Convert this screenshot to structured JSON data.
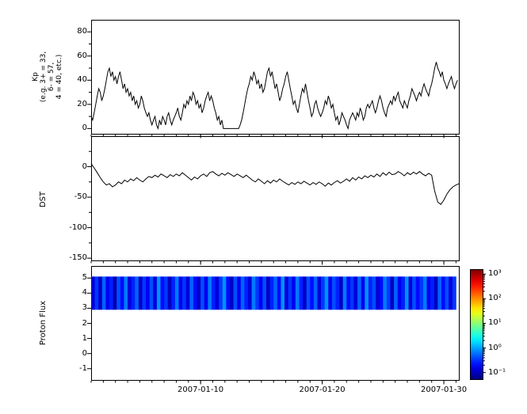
{
  "figure": {
    "bg": "#ffffff",
    "line_color": "#000000"
  },
  "chart_data": [
    {
      "type": "line",
      "panel": "kp",
      "ylabel_lines": [
        "Kp",
        "(e.g. 3+ = 33,",
        "6- = 57,",
        "4 = 40, etc.)"
      ],
      "ylim": [
        -5,
        90
      ],
      "yticks": [
        0,
        20,
        40,
        60,
        80
      ],
      "yticks_minor": [
        10,
        30,
        50,
        70
      ],
      "sample_hours": 3,
      "values": [
        10,
        7,
        13,
        20,
        27,
        33,
        30,
        23,
        27,
        33,
        40,
        47,
        50,
        43,
        47,
        40,
        43,
        37,
        43,
        47,
        40,
        33,
        37,
        30,
        33,
        27,
        30,
        23,
        27,
        20,
        23,
        17,
        20,
        27,
        23,
        17,
        13,
        10,
        13,
        7,
        3,
        7,
        10,
        3,
        0,
        7,
        3,
        10,
        7,
        3,
        10,
        13,
        7,
        3,
        7,
        10,
        13,
        17,
        10,
        7,
        13,
        20,
        17,
        23,
        20,
        27,
        23,
        30,
        27,
        20,
        23,
        17,
        20,
        13,
        17,
        23,
        27,
        30,
        23,
        27,
        23,
        17,
        13,
        7,
        10,
        3,
        7,
        0,
        0,
        0,
        0,
        0,
        0,
        0,
        0,
        0,
        0,
        0,
        3,
        7,
        13,
        20,
        27,
        33,
        37,
        43,
        40,
        47,
        43,
        37,
        40,
        33,
        37,
        30,
        33,
        40,
        47,
        50,
        43,
        47,
        40,
        33,
        37,
        30,
        23,
        27,
        33,
        37,
        43,
        47,
        40,
        33,
        27,
        20,
        23,
        17,
        13,
        20,
        27,
        33,
        30,
        37,
        30,
        23,
        17,
        10,
        13,
        20,
        23,
        17,
        13,
        10,
        13,
        17,
        23,
        20,
        27,
        23,
        17,
        20,
        13,
        7,
        10,
        3,
        7,
        13,
        10,
        7,
        3,
        0,
        7,
        10,
        13,
        10,
        7,
        13,
        10,
        17,
        13,
        7,
        10,
        17,
        20,
        17,
        20,
        23,
        17,
        13,
        17,
        23,
        27,
        23,
        17,
        13,
        10,
        17,
        20,
        23,
        20,
        27,
        23,
        27,
        30,
        23,
        20,
        17,
        23,
        20,
        17,
        23,
        27,
        33,
        30,
        27,
        23,
        27,
        30,
        27,
        33,
        37,
        33,
        30,
        27,
        33,
        37,
        43,
        50,
        55,
        50,
        47,
        43,
        47,
        40,
        37,
        33,
        37,
        40,
        43,
        37,
        33,
        37,
        40
      ]
    },
    {
      "type": "line",
      "panel": "dst",
      "ylabel": "DST",
      "ylim": [
        -155,
        50
      ],
      "yticks": [
        0,
        -50,
        -100,
        -150
      ],
      "yticks_minor": [
        25,
        -25,
        -75,
        -125
      ],
      "sample_hours": 6,
      "values": [
        5,
        -2,
        -10,
        -18,
        -25,
        -30,
        -28,
        -33,
        -30,
        -25,
        -28,
        -22,
        -25,
        -20,
        -23,
        -18,
        -22,
        -25,
        -20,
        -16,
        -18,
        -14,
        -17,
        -12,
        -15,
        -18,
        -13,
        -16,
        -12,
        -15,
        -10,
        -14,
        -18,
        -22,
        -17,
        -20,
        -15,
        -12,
        -16,
        -10,
        -8,
        -12,
        -15,
        -11,
        -14,
        -10,
        -13,
        -16,
        -12,
        -15,
        -18,
        -14,
        -18,
        -22,
        -25,
        -20,
        -24,
        -28,
        -23,
        -27,
        -22,
        -25,
        -20,
        -24,
        -27,
        -30,
        -26,
        -29,
        -25,
        -28,
        -24,
        -27,
        -30,
        -26,
        -29,
        -25,
        -28,
        -32,
        -27,
        -30,
        -26,
        -23,
        -27,
        -24,
        -20,
        -24,
        -18,
        -22,
        -17,
        -20,
        -15,
        -18,
        -14,
        -17,
        -12,
        -16,
        -10,
        -14,
        -9,
        -13,
        -12,
        -8,
        -11,
        -15,
        -10,
        -13,
        -9,
        -12,
        -8,
        -12,
        -15,
        -11,
        -14,
        -40,
        -58,
        -62,
        -55,
        -45,
        -38,
        -33,
        -30,
        -28
      ]
    },
    {
      "type": "heatmap",
      "panel": "proton",
      "ylabel": "Proton Flux",
      "ylim": [
        -1.8,
        5.8
      ],
      "yticks": [
        5,
        4,
        3,
        2,
        1,
        0,
        -1
      ],
      "band_y": [
        2.9,
        5.1
      ],
      "log_color_range": [
        -1.3,
        3.2
      ],
      "values_log10": [
        -0.9,
        -0.5,
        -1.0,
        -0.3,
        -0.8,
        -0.6,
        -1.1,
        -0.4,
        -0.7,
        -0.2,
        -0.9,
        -0.6,
        -0.3,
        -1.0,
        -0.5,
        -0.8,
        -0.4,
        -0.9,
        -0.1,
        -0.7,
        -0.5,
        -1.0,
        -0.6,
        -0.2,
        -0.8,
        -0.5,
        -0.9,
        -0.3,
        -0.7,
        -1.0,
        -0.4,
        -0.8,
        -0.2,
        -0.6,
        -0.9,
        -0.5,
        -0.1,
        -0.7,
        -1.0,
        -0.4,
        -0.8,
        -0.3,
        -0.6,
        -0.9,
        -0.2,
        -0.5,
        -0.8,
        -0.4,
        -1.0,
        -0.6,
        -0.3,
        -0.7,
        -0.1,
        -0.9,
        -0.5,
        -0.8,
        -0.2,
        -0.6,
        -1.0,
        -0.4,
        -0.7,
        -0.3,
        -0.9,
        -0.5,
        -0.1,
        -0.8,
        -0.4,
        -0.6,
        -1.0,
        -0.2,
        -0.7,
        -0.5,
        -0.9,
        -0.3,
        -0.8,
        -0.1,
        -0.6,
        -0.4,
        -0.9,
        -0.7,
        -0.2,
        -0.5,
        -1.0,
        -0.3,
        -0.8,
        -0.6,
        -0.1,
        -0.9,
        -0.4,
        -0.7,
        -0.5,
        -0.2,
        -0.8,
        -0.6,
        -1.0,
        -0.3,
        -0.7,
        -0.4,
        -0.9,
        -0.5
      ]
    }
  ],
  "xaxis": {
    "start_day": 1,
    "end_day": 31.3,
    "ticks": [
      {
        "day": 10,
        "label": "2007-01-10"
      },
      {
        "day": 20,
        "label": "2007-01-20"
      },
      {
        "day": 30,
        "label": "2007-01-30"
      }
    ]
  },
  "colorbar": {
    "colormap": "jet",
    "log_range": [
      -1.3,
      3.2
    ],
    "tick_exps": [
      3,
      2,
      1,
      0,
      -1
    ],
    "ticks": [
      "10³",
      "10²",
      "10¹",
      "10⁰",
      "10⁻¹"
    ]
  }
}
